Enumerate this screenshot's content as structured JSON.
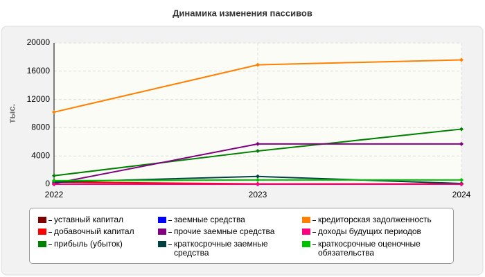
{
  "chart_data": {
    "type": "line",
    "title": "Динамика изменения пассивов",
    "y_label": "тыс.",
    "x": [
      2022,
      2023,
      2024
    ],
    "xlim": [
      2022,
      2024
    ],
    "xticks": [
      2022,
      2023,
      2024
    ],
    "ylim": [
      0,
      20000
    ],
    "yticks": [
      0,
      4000,
      8000,
      12000,
      16000,
      20000
    ],
    "grid": true,
    "series": [
      {
        "name": "уставный капитал",
        "color": "#800000",
        "values": [
          10,
          10,
          10
        ]
      },
      {
        "name": "добавочный капитал",
        "color": "#ff0000",
        "values": [
          300,
          50,
          50
        ]
      },
      {
        "name": "прибыль (убыток)",
        "color": "#008000",
        "values": [
          1200,
          4700,
          7800
        ]
      },
      {
        "name": "заемные средства",
        "color": "#0000ff",
        "values": [
          0,
          0,
          0
        ]
      },
      {
        "name": "прочие заемные средства",
        "color": "#800080",
        "values": [
          100,
          5700,
          5700
        ]
      },
      {
        "name": "краткосрочные заемные средства",
        "color": "#004040",
        "values": [
          300,
          1100,
          100
        ]
      },
      {
        "name": "кредиторская задолженность",
        "color": "#ff8000",
        "values": [
          10200,
          16900,
          17600
        ]
      },
      {
        "name": "доходы будущих периодов",
        "color": "#ff0080",
        "values": [
          0,
          0,
          0
        ]
      },
      {
        "name": "краткосрочные оценочные обязательства",
        "color": "#00c000",
        "values": [
          500,
          600,
          600
        ]
      }
    ]
  }
}
